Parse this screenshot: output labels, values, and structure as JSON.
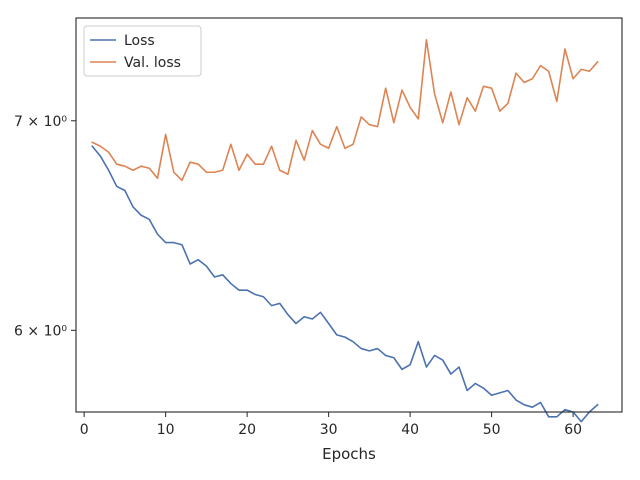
{
  "chart_data": {
    "type": "line",
    "title": "",
    "xlabel": "Epochs",
    "ylabel": "",
    "yscale": "log",
    "xlim": [
      -1,
      66
    ],
    "ylim": [
      5.65,
      7.55
    ],
    "xticks": [
      0,
      10,
      20,
      30,
      40,
      50,
      60
    ],
    "yticks": [
      {
        "value": 6,
        "label": "6 × 10⁰"
      },
      {
        "value": 7,
        "label": "7 × 10⁰"
      }
    ],
    "grid": false,
    "legend": "top-left",
    "x": [
      1,
      2,
      3,
      4,
      5,
      6,
      7,
      8,
      9,
      10,
      11,
      12,
      13,
      14,
      15,
      16,
      17,
      18,
      19,
      20,
      21,
      22,
      23,
      24,
      25,
      26,
      27,
      28,
      29,
      30,
      31,
      32,
      33,
      34,
      35,
      36,
      37,
      38,
      39,
      40,
      41,
      42,
      43,
      44,
      45,
      46,
      47,
      48,
      49,
      50,
      51,
      52,
      53,
      54,
      55,
      56,
      57,
      58,
      59,
      60,
      61,
      62,
      63
    ],
    "series": [
      {
        "name": "Loss",
        "color": "#4c72b0",
        "values": [
          6.87,
          6.82,
          6.75,
          6.67,
          6.65,
          6.57,
          6.53,
          6.51,
          6.44,
          6.4,
          6.4,
          6.39,
          6.3,
          6.32,
          6.29,
          6.24,
          6.25,
          6.21,
          6.18,
          6.18,
          6.16,
          6.15,
          6.11,
          6.12,
          6.07,
          6.03,
          6.06,
          6.05,
          6.08,
          6.03,
          5.98,
          5.97,
          5.95,
          5.92,
          5.91,
          5.92,
          5.89,
          5.88,
          5.83,
          5.85,
          5.95,
          5.84,
          5.89,
          5.87,
          5.81,
          5.84,
          5.74,
          5.77,
          5.75,
          5.72,
          5.73,
          5.74,
          5.7,
          5.68,
          5.67,
          5.69,
          5.63,
          5.63,
          5.66,
          5.65,
          5.61,
          5.65,
          5.68
        ]
      },
      {
        "name": "Val. loss",
        "color": "#dd8452",
        "values": [
          6.89,
          6.87,
          6.84,
          6.78,
          6.77,
          6.75,
          6.77,
          6.76,
          6.71,
          6.93,
          6.74,
          6.7,
          6.79,
          6.78,
          6.74,
          6.74,
          6.75,
          6.88,
          6.75,
          6.83,
          6.78,
          6.78,
          6.87,
          6.75,
          6.73,
          6.9,
          6.8,
          6.95,
          6.88,
          6.86,
          6.97,
          6.86,
          6.88,
          7.02,
          6.98,
          6.97,
          7.17,
          6.99,
          7.16,
          7.07,
          7.01,
          7.43,
          7.14,
          6.99,
          7.15,
          6.98,
          7.12,
          7.05,
          7.18,
          7.17,
          7.05,
          7.09,
          7.25,
          7.2,
          7.22,
          7.29,
          7.26,
          7.1,
          7.38,
          7.22,
          7.27,
          7.26,
          7.31
        ]
      }
    ]
  }
}
